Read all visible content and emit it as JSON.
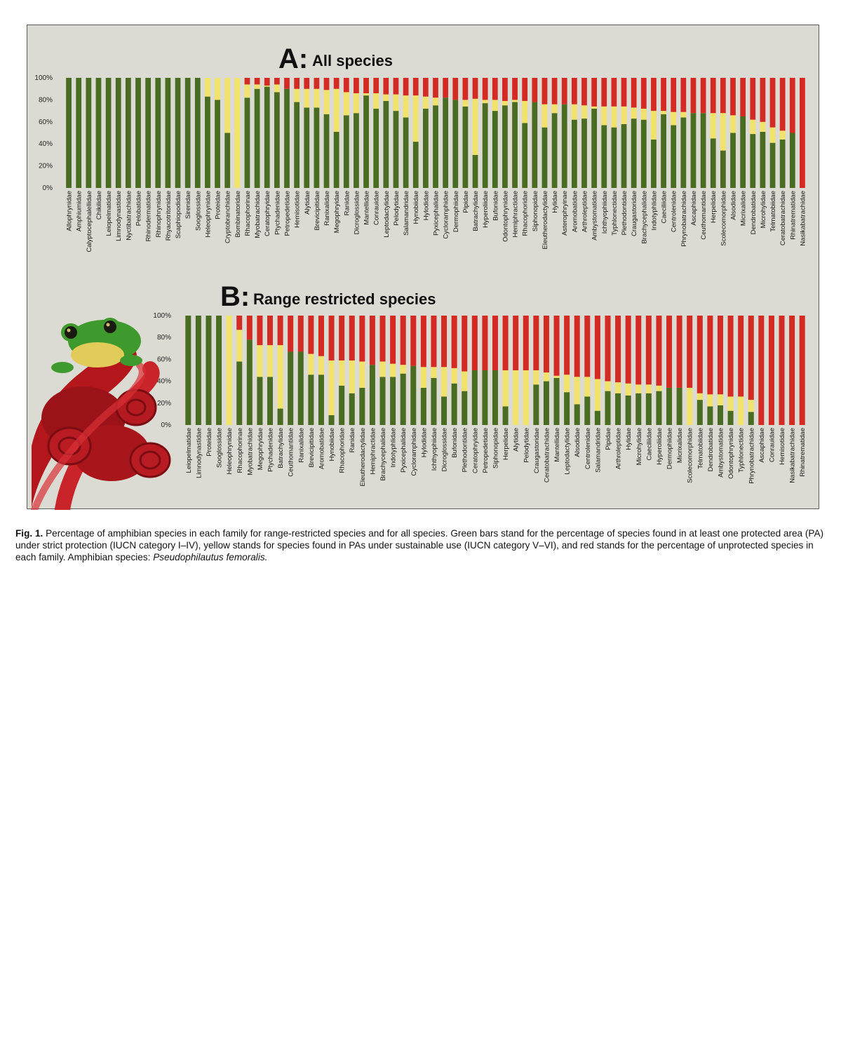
{
  "figure": {
    "panel_a_letter": "A:",
    "panel_a_title": "All species",
    "panel_b_letter": "B:",
    "panel_b_title": "Range restricted species",
    "colors": {
      "strict": "#4a6b22",
      "sustainable": "#f0e26a",
      "unprotected": "#d32a24",
      "background": "#dcdbd3"
    },
    "photo_subject": "frog-on-red-plant-icon"
  },
  "caption": {
    "lead": "Fig. 1.",
    "text": "Percentage of amphibian species in each family for range-restricted species and for all species. Green bars stand for the percentage of species found in at least one protected area (PA) under strict protection (IUCN category I–IV), yellow stands for species found in PAs under sustainable use (IUCN category V–VI), and red stands for the percentage of unprotected species in each family. Amphibian species: ",
    "species": "Pseudophilautus femoralis."
  },
  "chart_data": [
    {
      "type": "bar",
      "stacked": true,
      "title": "All species",
      "ylim": [
        0,
        100
      ],
      "yticks": [
        "0%",
        "20%",
        "40%",
        "60%",
        "80%",
        "100%"
      ],
      "categories": [
        "Allophrynidae",
        "Amphiumidae",
        "Calyptocephalellidae",
        "Chikilidae",
        "Leiopelmatidae",
        "Limnodynastidae",
        "Nyctibatrachidae",
        "Pelobatidae",
        "Rhinodermatidae",
        "Rhinophrynidae",
        "Rhyacotritonidae",
        "Scaphiopodidae",
        "Sirenidae",
        "Sooglossidae",
        "Heleophrynidae",
        "Proteidae",
        "Cryptobranchidae",
        "Bombinatoridae",
        "Rhacophorinae",
        "Myobatrachidae",
        "Ceratophryidae",
        "Ptychadenidae",
        "Petropedetidae",
        "Hemisotidae",
        "Alytidae",
        "Brevicipitidae",
        "Ranixalidae",
        "Megophryidae",
        "Ranidae",
        "Dicroglossidae",
        "Mantellidae",
        "Conrauidae",
        "Leptodactylidae",
        "Pelodytidae",
        "Salamandridae",
        "Hynobiidae",
        "Hylodidae",
        "Pyxicephalidae",
        "Cycloramphidae",
        "Dermophiidae",
        "Pipidae",
        "Batrachylidae",
        "Hyperoliidae",
        "Bufonidae",
        "Odontophrynidae",
        "Hemiphractidae",
        "Rhacophoridae",
        "Siphonopidae",
        "Eleutherodactylidae",
        "Hylidae",
        "Asterophryinae",
        "Aromobatidae",
        "Arthroleptidae",
        "Ambystomatidae",
        "Ichthyophiidae",
        "Typhlonectidae",
        "Plethodontidae",
        "Craugastoridae",
        "Brachycephalidae",
        "Indotyphlidae",
        "Caeciliidae",
        "Centrolenidae",
        "Phrynobatrachidae",
        "Ascaphidae",
        "Ceuthomantidae",
        "Herpelidae",
        "Scolecomorphidae",
        "Alsodidae",
        "Micrixalidae",
        "Dendrobatidae",
        "Microhylidae",
        "Telmatobiidae",
        "Ceratobatrachidae",
        "Rhinatrematidae",
        "Nasikabatrachidae"
      ],
      "series": [
        {
          "name": "strict protection (IUCN I–IV)",
          "values": [
            100,
            100,
            100,
            100,
            100,
            100,
            100,
            100,
            100,
            100,
            100,
            100,
            100,
            100,
            83,
            80,
            50,
            0,
            82,
            90,
            92,
            87,
            90,
            78,
            73,
            73,
            67,
            51,
            66,
            68,
            84,
            72,
            79,
            70,
            64,
            42,
            72,
            75,
            82,
            80,
            74,
            30,
            77,
            70,
            75,
            78,
            59,
            78,
            55,
            68,
            76,
            62,
            63,
            72,
            57,
            55,
            58,
            63,
            62,
            44,
            67,
            57,
            64,
            68,
            68,
            45,
            34,
            50,
            65,
            49,
            51,
            41,
            44,
            50,
            0
          ]
        },
        {
          "name": "sustainable use (IUCN V–VI)",
          "values": [
            0,
            0,
            0,
            0,
            0,
            0,
            0,
            0,
            0,
            0,
            0,
            0,
            0,
            0,
            17,
            20,
            50,
            100,
            12,
            4,
            1,
            7,
            0,
            12,
            17,
            17,
            22,
            39,
            21,
            18,
            2,
            14,
            6,
            15,
            20,
            42,
            11,
            7,
            0,
            0,
            6,
            51,
            3,
            10,
            4,
            2,
            20,
            0,
            21,
            8,
            0,
            14,
            12,
            2,
            17,
            19,
            16,
            10,
            10,
            26,
            3,
            12,
            5,
            0,
            0,
            23,
            34,
            16,
            0,
            13,
            9,
            14,
            8,
            0,
            0
          ]
        },
        {
          "name": "unprotected",
          "values": [
            0,
            0,
            0,
            0,
            0,
            0,
            0,
            0,
            0,
            0,
            0,
            0,
            0,
            0,
            0,
            0,
            0,
            0,
            6,
            6,
            7,
            6,
            10,
            10,
            10,
            10,
            11,
            10,
            13,
            14,
            14,
            14,
            15,
            15,
            16,
            16,
            17,
            18,
            18,
            20,
            20,
            19,
            20,
            20,
            21,
            20,
            21,
            22,
            24,
            24,
            24,
            24,
            25,
            26,
            26,
            26,
            26,
            27,
            28,
            30,
            30,
            31,
            31,
            32,
            32,
            32,
            32,
            34,
            35,
            38,
            40,
            45,
            48,
            50,
            100
          ]
        }
      ]
    },
    {
      "type": "bar",
      "stacked": true,
      "title": "Range restricted species",
      "ylim": [
        0,
        100
      ],
      "yticks": [
        "0%",
        "20%",
        "40%",
        "60%",
        "80%",
        "100%"
      ],
      "categories": [
        "Leiopelmatidae",
        "Limnodynastidae",
        "Proteidae",
        "Sooglossidae",
        "Heleophrynidae",
        "Rhacophorinae",
        "Myobatrachidae",
        "Megophryidae",
        "Ptychadenidae",
        "Batrachylidae",
        "Ceuthomantidae",
        "Ranixalidae",
        "Brevicipitidae",
        "Aromobatidae",
        "Hynobiidae",
        "Rhacophoridae",
        "Ranidae",
        "Eleutherodactylidae",
        "Hemiphractidae",
        "Brachycephalidae",
        "Indotyphlidae",
        "Pyxicephalidae",
        "Cycloramphidae",
        "Hylodidae",
        "Ichthyophiidae",
        "Dicroglossidae",
        "Bufonidae",
        "Plethodontidae",
        "Ceratophryidae",
        "Petropedetidae",
        "Siphonopidae",
        "Herpelidae",
        "Alytidae",
        "Pelodytidae",
        "Craugastoridae",
        "Ceratobatrachidae",
        "Mantellidae",
        "Leptodactylidae",
        "Alsodidae",
        "Centrolenidae",
        "Salamandridae",
        "Pipidae",
        "Arthroleptidae",
        "Hylidae",
        "Microhylidae",
        "Caeciliidae",
        "Hyperoliidae",
        "Dermophiidae",
        "Micrixalidae",
        "Scolecomorphidae",
        "Telmatobiidae",
        "Dendrobatidae",
        "Ambystomatidae",
        "Odontophrynidae",
        "Typhlonectidae",
        "Phrynobatrachidae",
        "Ascaphidae",
        "Conrauidae",
        "Hemisotidae",
        "Nasikabatrachidae",
        "Rhinatrematidae"
      ],
      "series": [
        {
          "name": "strict protection (IUCN I–IV)",
          "values": [
            100,
            100,
            100,
            100,
            0,
            58,
            78,
            44,
            44,
            15,
            67,
            67,
            46,
            46,
            9,
            36,
            29,
            34,
            55,
            44,
            44,
            47,
            54,
            34,
            43,
            26,
            38,
            31,
            50,
            50,
            50,
            17,
            0,
            0,
            37,
            40,
            43,
            30,
            19,
            26,
            13,
            31,
            29,
            27,
            29,
            29,
            31,
            34,
            34,
            0,
            23,
            17,
            18,
            13,
            0,
            12,
            0,
            0,
            0,
            0,
            0
          ]
        },
        {
          "name": "sustainable use (IUCN V–VI)",
          "values": [
            0,
            0,
            0,
            0,
            100,
            29,
            0,
            29,
            29,
            58,
            0,
            0,
            19,
            17,
            50,
            23,
            30,
            24,
            0,
            14,
            12,
            8,
            0,
            19,
            10,
            27,
            14,
            18,
            0,
            0,
            0,
            33,
            50,
            50,
            13,
            8,
            2,
            16,
            25,
            18,
            29,
            9,
            10,
            11,
            8,
            8,
            5,
            0,
            0,
            34,
            6,
            11,
            10,
            13,
            26,
            11,
            0,
            0,
            0,
            0,
            0
          ]
        },
        {
          "name": "unprotected",
          "values": [
            0,
            0,
            0,
            0,
            0,
            13,
            22,
            27,
            27,
            27,
            33,
            33,
            35,
            37,
            41,
            41,
            41,
            42,
            45,
            42,
            44,
            45,
            46,
            47,
            47,
            47,
            48,
            51,
            50,
            50,
            50,
            50,
            50,
            50,
            50,
            52,
            55,
            54,
            56,
            56,
            58,
            60,
            61,
            62,
            63,
            63,
            64,
            66,
            66,
            66,
            71,
            72,
            72,
            74,
            74,
            77,
            100,
            100,
            100,
            100,
            100
          ]
        }
      ]
    }
  ]
}
